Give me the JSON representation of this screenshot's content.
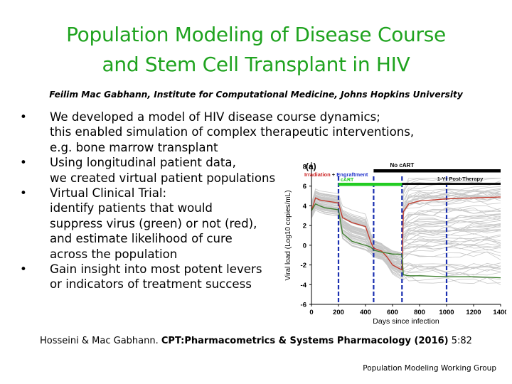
{
  "title_lines": [
    "Population Modeling of Disease Course",
    "and Stem Cell Transplant in HIV"
  ],
  "author": "Feilim Mac Gabhann, Institute for Computational Medicine, Johns Hopkins University",
  "bullets": [
    [
      "We developed a model of HIV disease course dynamics;",
      "this enabled simulation of complex therapeutic interventions,",
      "e.g. bone marrow transplant"
    ],
    [
      "Using longitudinal patient data,",
      "we created virtual patient populations"
    ],
    [
      "Virtual Clinical Trial:",
      "identify patients that would",
      "suppress virus (green) or not (red),",
      "and estimate likelihood of cure",
      "across the population"
    ],
    [
      "Gain insight into most potent levers",
      "or indicators of treatment success"
    ]
  ],
  "bullet_symbol": "•",
  "citation": {
    "authors": "Hosseini & Mac Gabhann.",
    "journal": "CPT:Pharmacometrics & Systems Pharmacology (2016)",
    "volume": "5:82"
  },
  "footer": "Population Modeling Working Group",
  "chart_data": {
    "type": "line",
    "panel_label": "(a)",
    "xlabel": "Days since infection",
    "ylabel": "Viral load (Log10 copies/mL)",
    "xlim": [
      0,
      1400
    ],
    "ylim": [
      -6,
      8
    ],
    "xticks": [
      0,
      200,
      400,
      600,
      800,
      1000,
      1200,
      1400
    ],
    "yticks": [
      -6,
      -4,
      -2,
      0,
      2,
      4,
      6,
      8
    ],
    "vlines_days": [
      200,
      460,
      670,
      1000
    ],
    "colors": {
      "population": "#c8c8c8",
      "red": "#c0392b",
      "green": "#3a7d2a",
      "no_cart": "#000000",
      "post_therapy": "#111111",
      "cart": "#22cc22",
      "irradiation": "#cc2222",
      "engraftment": "#2233cc",
      "vline": "#1a2fb0"
    },
    "annotations": [
      {
        "text": "No cART",
        "color": "#000000",
        "start": 460,
        "end": 1400
      },
      {
        "text": "1-Yr Post-Therapy",
        "color": "#111111",
        "start": 670,
        "end": 1400
      },
      {
        "text": "cART",
        "color": "#22cc22",
        "start": 200,
        "end": 670
      },
      {
        "text": "Irradiation",
        "color": "#cc2222"
      },
      {
        "text": "+",
        "color": "#000000"
      },
      {
        "text": "Engraftment",
        "color": "#2233cc"
      }
    ],
    "series": [
      {
        "x": [
          0,
          30,
          60,
          100,
          200,
          230,
          300,
          400,
          440,
          460,
          520,
          560,
          600,
          640,
          670,
          680,
          720,
          800,
          900,
          1000,
          1100,
          1200,
          1300,
          1400
        ],
        "y": [
          3.5,
          4.8,
          4.6,
          4.5,
          4.3,
          2.8,
          2.3,
          1.9,
          0.3,
          -0.3,
          -0.6,
          -1.2,
          -2.0,
          -2.3,
          -2.5,
          3.4,
          4.2,
          4.5,
          4.6,
          4.7,
          4.75,
          4.8,
          4.85,
          4.9
        ]
      },
      {
        "x": [
          0,
          30,
          60,
          100,
          200,
          230,
          300,
          400,
          440,
          460,
          520,
          560,
          600,
          640,
          670,
          680,
          720,
          800,
          900,
          1000,
          1100,
          1200,
          1300,
          1400
        ],
        "y": [
          3.5,
          4.2,
          4.0,
          3.8,
          3.6,
          1.2,
          0.4,
          0.0,
          -0.2,
          -0.5,
          -0.7,
          -0.8,
          -0.9,
          -0.9,
          -0.95,
          -3.0,
          -3.1,
          -3.1,
          -3.15,
          -3.2,
          -3.2,
          -3.2,
          -3.25,
          -3.3
        ]
      }
    ]
  }
}
